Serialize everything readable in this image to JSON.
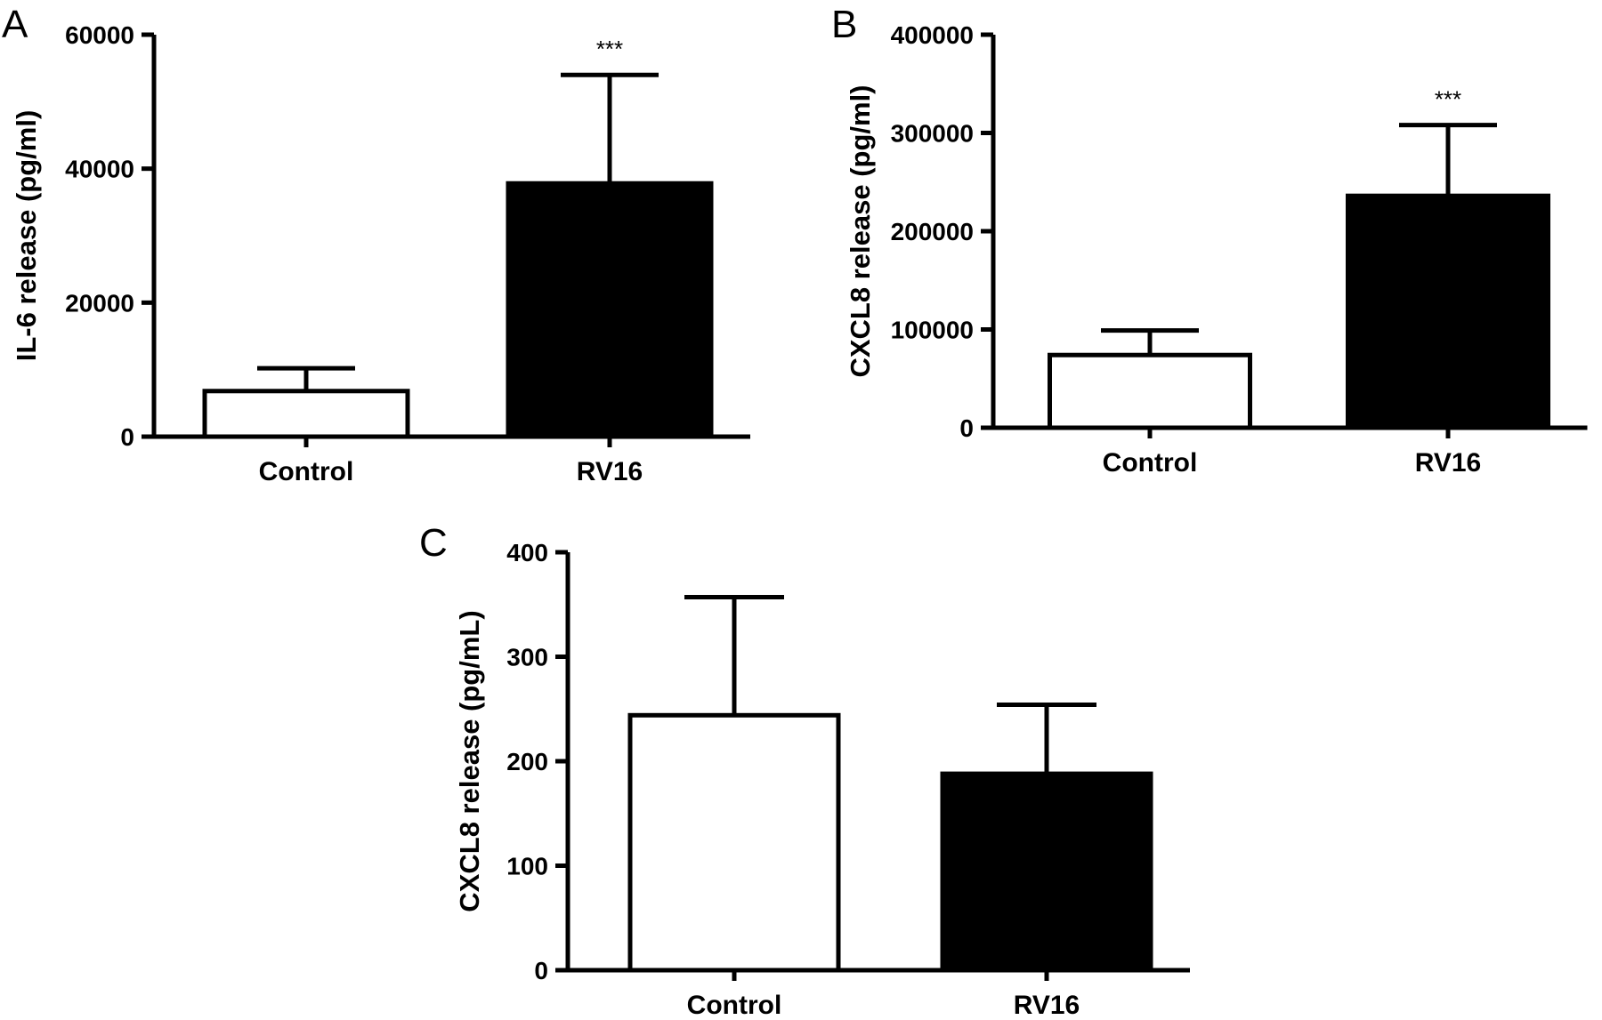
{
  "chart_data": [
    {
      "panel": "A",
      "type": "bar",
      "ylabel": "IL-6 release (pg/ml)",
      "yticks": [
        "0",
        "20000",
        "40000",
        "60000"
      ],
      "ylim": [
        0,
        60000
      ],
      "categories": [
        "Control",
        "RV16"
      ],
      "values": [
        6800,
        37800
      ],
      "errors": [
        3400,
        16200
      ],
      "fills": [
        "#ffffff",
        "#000000"
      ],
      "annotations": [
        "",
        "***"
      ]
    },
    {
      "panel": "B",
      "type": "bar",
      "ylabel": "CXCL8 release (pg/ml)",
      "yticks": [
        "0",
        "100000",
        "200000",
        "300000",
        "400000"
      ],
      "ylim": [
        0,
        400000
      ],
      "categories": [
        "Control",
        "RV16"
      ],
      "values": [
        74000,
        236000
      ],
      "errors": [
        25000,
        72000
      ],
      "fills": [
        "#ffffff",
        "#000000"
      ],
      "annotations": [
        "",
        "***"
      ]
    },
    {
      "panel": "C",
      "type": "bar",
      "ylabel": "CXCL8 release (pg/mL)",
      "yticks": [
        "0",
        "100",
        "200",
        "300",
        "400"
      ],
      "ylim": [
        0,
        400
      ],
      "categories": [
        "Control",
        "RV16"
      ],
      "values": [
        244,
        188
      ],
      "errors": [
        113,
        66
      ],
      "fills": [
        "#ffffff",
        "#000000"
      ],
      "annotations": [
        "",
        ""
      ]
    }
  ]
}
